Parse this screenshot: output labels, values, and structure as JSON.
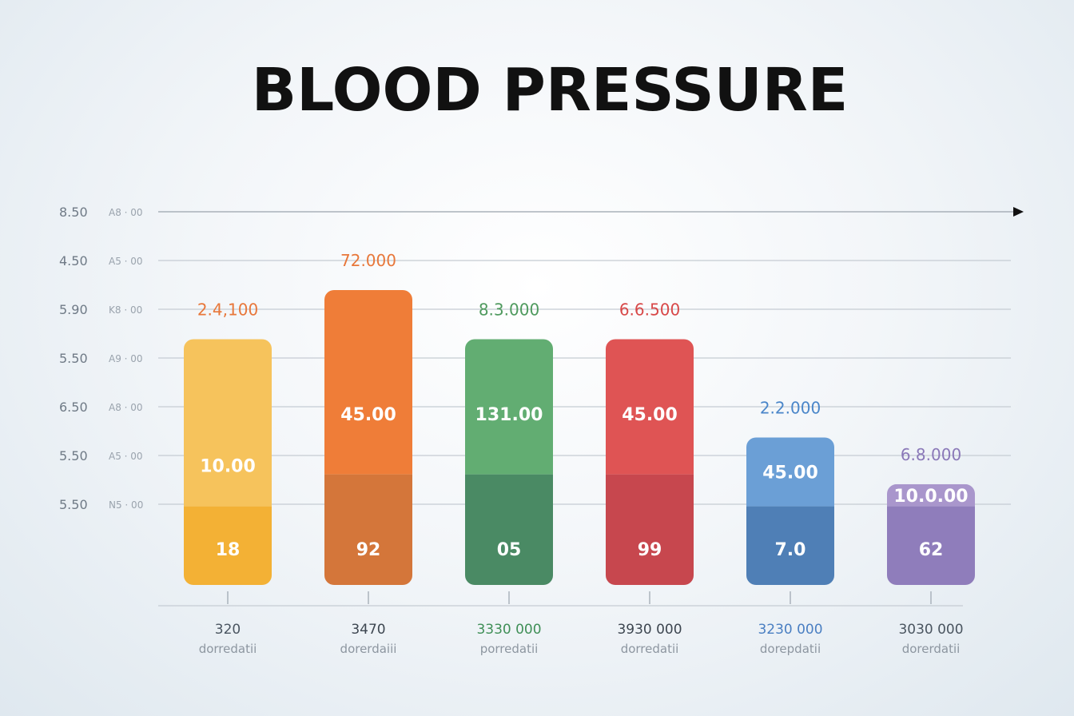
{
  "chart_data": {
    "type": "bar",
    "title": "BLOOD PRESSURE",
    "y_ticks": [
      {
        "label": "8.50",
        "sub": "A8 · 00"
      },
      {
        "label": "4.50",
        "sub": "A5 · 00"
      },
      {
        "label": "5.90",
        "sub": "K8 · 00"
      },
      {
        "label": "5.50",
        "sub": "A9 · 00"
      },
      {
        "label": "6.50",
        "sub": "A8 · 00"
      },
      {
        "label": "5.50",
        "sub": "A5 · 00"
      },
      {
        "label": "5.50",
        "sub": "N5 · 00"
      }
    ],
    "bars": [
      {
        "category": "320",
        "sub": "dorredatii",
        "top_label": "2.4,100",
        "mid_label": "10.00",
        "bottom_label": "18",
        "level": 5,
        "split_level": 1.6,
        "color": "#f6c35c",
        "dark": "#f3b135",
        "text_color": "#e8773a",
        "cat_color": "#4a5560"
      },
      {
        "category": "3470",
        "sub": "dorerdaiii",
        "top_label": "72.000",
        "mid_label": "45.00",
        "bottom_label": "92",
        "level": 6,
        "split_level": 2.25,
        "color": "#ef7d38",
        "dark": "#d4763a",
        "text_color": "#e8773a",
        "cat_color": "#3d4650"
      },
      {
        "category": "3330  000",
        "sub": "porredatii",
        "top_label": "8.3.000",
        "mid_label": "131.00",
        "bottom_label": "05",
        "level": 5,
        "split_level": 2.25,
        "color": "#62ad72",
        "dark": "#4a8a64",
        "text_color": "#4f9a5e",
        "cat_color": "#3f8f57"
      },
      {
        "category": "3930  000",
        "sub": "dorredatii",
        "top_label": "6.6.500",
        "mid_label": "45.00",
        "bottom_label": "99",
        "level": 5,
        "split_level": 2.25,
        "color": "#df5454",
        "dark": "#c7474e",
        "text_color": "#d84848",
        "cat_color": "#3d4650"
      },
      {
        "category": "3230  000",
        "sub": "dorepdatii",
        "top_label": "2.2.000",
        "mid_label": "45.00",
        "bottom_label": "7.0",
        "level": 3,
        "split_level": 1.6,
        "color": "#6b9fd6",
        "dark": "#4f7fb6",
        "text_color": "#4a86c9",
        "cat_color": "#4a7fc2"
      },
      {
        "category": "3030  000",
        "sub": "dorerdatii",
        "top_label": "6.8.000",
        "mid_label": "10.0.00",
        "bottom_label": "62",
        "level": 2.05,
        "split_level": 1.6,
        "color": "#a996cc",
        "dark": "#8f7dbb",
        "text_color": "#8a78b8",
        "cat_color": "#4a5560"
      }
    ],
    "grid": true,
    "legend": "none"
  }
}
